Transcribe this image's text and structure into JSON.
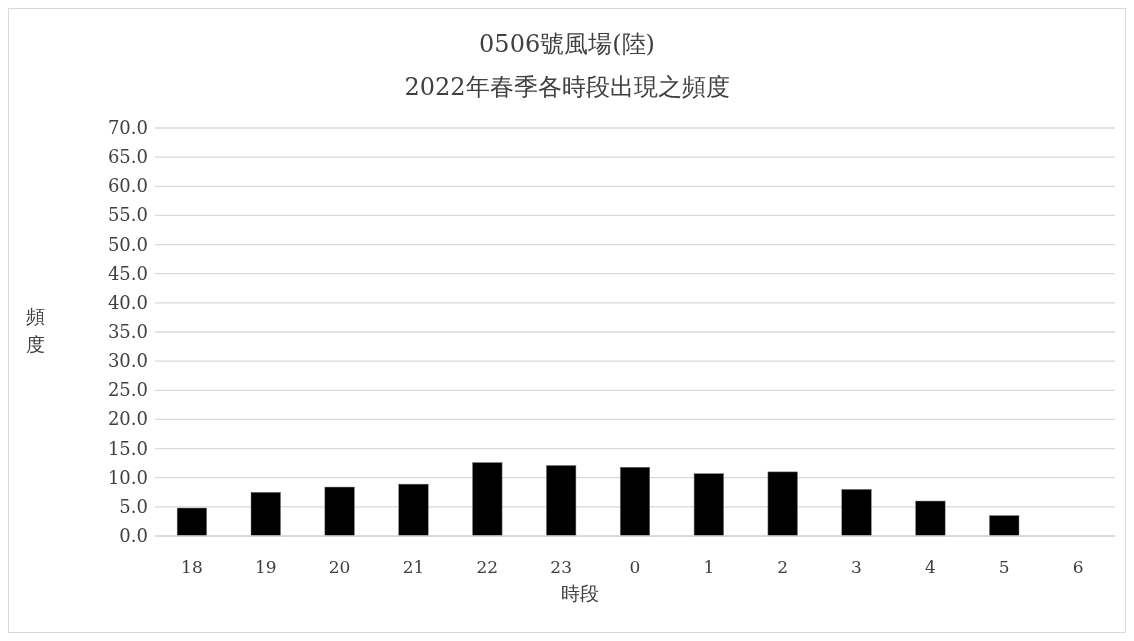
{
  "chart_data": {
    "type": "bar",
    "title": "0506號風場(陸)",
    "subtitle": "2022年春季各時段出現之頻度",
    "xlabel": "時段",
    "ylabel": "頻度",
    "categories": [
      "18",
      "19",
      "20",
      "21",
      "22",
      "23",
      "0",
      "1",
      "2",
      "3",
      "4",
      "5",
      "6"
    ],
    "values": [
      4.8,
      7.5,
      8.4,
      8.9,
      12.6,
      12.1,
      11.8,
      10.7,
      11.0,
      8.0,
      6.0,
      3.5,
      0
    ],
    "color": "#000000",
    "ylim": [
      0,
      70
    ],
    "yticks": [
      {
        "value": 0,
        "label": "0.0"
      },
      {
        "value": 5,
        "label": "5.0"
      },
      {
        "value": 10,
        "label": "10.0"
      },
      {
        "value": 15,
        "label": "15.0"
      },
      {
        "value": 20,
        "label": "20.0"
      },
      {
        "value": 25,
        "label": "25.0"
      },
      {
        "value": 30,
        "label": "30.0"
      },
      {
        "value": 35,
        "label": "35.0"
      },
      {
        "value": 40,
        "label": "40.0"
      },
      {
        "value": 45,
        "label": "45.0"
      },
      {
        "value": 50,
        "label": "50.0"
      },
      {
        "value": 55,
        "label": "55.0"
      },
      {
        "value": 60,
        "label": "60.0"
      },
      {
        "value": 65,
        "label": "65.0"
      },
      {
        "value": 70,
        "label": "70.0"
      }
    ],
    "grid": "y"
  }
}
